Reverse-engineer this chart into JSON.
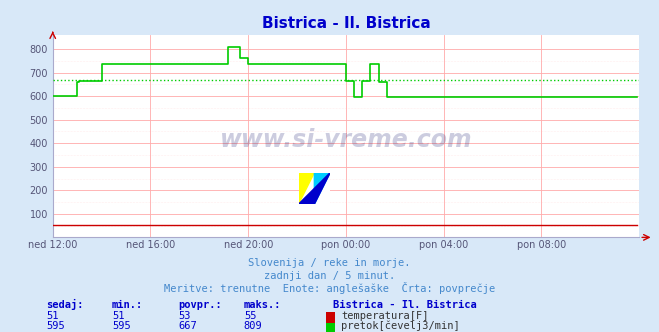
{
  "title": "Bistrica - Il. Bistrica",
  "title_color": "#0000cc",
  "bg_color": "#d8e8f8",
  "plot_bg_color": "#ffffff",
  "grid_color_major": "#ffaaaa",
  "grid_color_minor": "#ffdddd",
  "xlabel_ticks": [
    "ned 12:00",
    "ned 16:00",
    "ned 20:00",
    "pon 00:00",
    "pon 04:00",
    "pon 08:00"
  ],
  "tick_positions": [
    0,
    48,
    96,
    144,
    192,
    240,
    287
  ],
  "ytick_vals": [
    100,
    200,
    300,
    400,
    500,
    600,
    700,
    800
  ],
  "ytick_labels": [
    "100",
    "200",
    "300",
    "400",
    "500",
    "600",
    "700",
    "800"
  ],
  "ylim": [
    0,
    860
  ],
  "xlim": [
    0,
    288
  ],
  "avg_flow": 667,
  "watermark_text": "www.si-vreme.com",
  "subtitle1": "Slovenija / reke in morje.",
  "subtitle2": "zadnji dan / 5 minut.",
  "subtitle3": "Meritve: trenutne  Enote: anglešaške  Črta: povprečje",
  "subtitle_color": "#4488cc",
  "footer_color": "#0000cc",
  "table_headers": [
    "sedaj:",
    "min.:",
    "povpr.:",
    "maks.:"
  ],
  "table_row1": [
    "51",
    "51",
    "53",
    "55"
  ],
  "table_row2": [
    "595",
    "595",
    "667",
    "809"
  ],
  "legend1": "temperatura[F]",
  "legend2": "pretok[čevelj3/min]",
  "temp_color": "#cc0000",
  "flow_color": "#00cc00",
  "n_points": 288
}
